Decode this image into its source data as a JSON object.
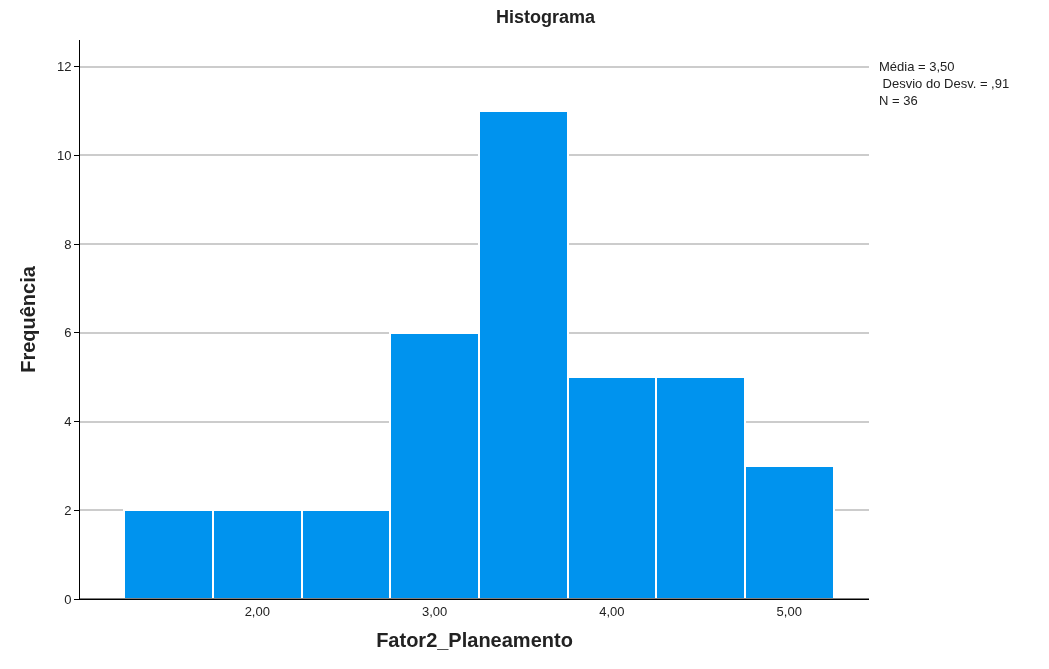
{
  "chart_data": {
    "type": "histogram",
    "title": "Histograma",
    "xlabel": "Fator2_Planeamento",
    "ylabel": "Frequência",
    "bins": [
      1.25,
      1.75,
      2.25,
      2.75,
      3.25,
      3.75,
      4.25,
      4.75,
      5.25
    ],
    "values": [
      2,
      2,
      2,
      6,
      11,
      5,
      5,
      3
    ],
    "color": "#0093ee",
    "xlim": [
      1.0,
      5.45
    ],
    "ylim": [
      0,
      12.6
    ],
    "xticks": [
      {
        "value": 2,
        "label": "2,00"
      },
      {
        "value": 3,
        "label": "3,00"
      },
      {
        "value": 4,
        "label": "4,00"
      },
      {
        "value": 5,
        "label": "5,00"
      }
    ],
    "yticks": [
      0,
      2,
      4,
      6,
      8,
      10,
      12
    ],
    "grid": "y",
    "annotations": [
      "Média = 3,50",
      " Desvio do Desv. = ,91",
      "N = 36"
    ]
  }
}
